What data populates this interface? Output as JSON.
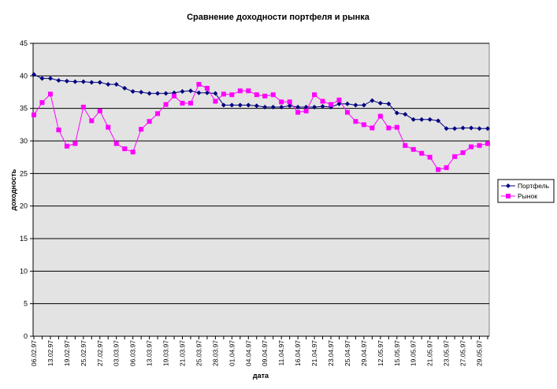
{
  "chart_data": {
    "type": "line",
    "title": "Сравнение доходности портфеля и рынка",
    "xlabel": "дата",
    "ylabel": "доходность",
    "ylim": [
      0,
      45
    ],
    "yticks": [
      0,
      5,
      10,
      15,
      20,
      25,
      30,
      35,
      40,
      45
    ],
    "grid": true,
    "legend_position": "right",
    "plot_background": "#e3e3e3",
    "categories": [
      "06.02.97",
      "",
      "13.02.97",
      "",
      "19.02.97",
      "",
      "25.02.97",
      "",
      "27.02.97",
      "",
      "03.03.97",
      "",
      "06.03.97",
      "",
      "13.03.97",
      "",
      "19.03.97",
      "",
      "21.03.97",
      "",
      "25.03.97",
      "",
      "28.03.97",
      "",
      "01.04.97",
      "",
      "04.04.97",
      "",
      "09.04.97",
      "",
      "11.04.97",
      "",
      "16.04.97",
      "",
      "21.04.97",
      "",
      "23.04.97",
      "",
      "25.04.97",
      "",
      "29.04.97",
      "",
      "12.05.97",
      "",
      "15.05.97",
      "",
      "19.05.97",
      "",
      "21.05.97",
      "",
      "23.05.97",
      "",
      "27.05.97",
      "",
      "29.05.97",
      ""
    ],
    "series": [
      {
        "name": "Портфель",
        "color": "#000080",
        "marker": "diamond",
        "values": [
          40.2,
          39.6,
          39.6,
          39.3,
          39.2,
          39.1,
          39.1,
          39.0,
          39.0,
          38.7,
          38.7,
          38.1,
          37.6,
          37.5,
          37.3,
          37.3,
          37.3,
          37.4,
          37.6,
          37.7,
          37.4,
          37.4,
          37.3,
          35.5,
          35.5,
          35.5,
          35.5,
          35.4,
          35.2,
          35.2,
          35.2,
          35.4,
          35.2,
          35.2,
          35.2,
          35.3,
          35.2,
          35.7,
          35.7,
          35.5,
          35.5,
          36.2,
          35.8,
          35.7,
          34.3,
          34.1,
          33.3,
          33.3,
          33.3,
          33.1,
          31.9,
          31.9,
          32.0,
          32.0,
          31.9,
          31.9
        ]
      },
      {
        "name": "Рынок",
        "color": "#ff00ff",
        "marker": "square",
        "values": [
          34.0,
          35.9,
          37.2,
          31.7,
          29.2,
          29.6,
          35.2,
          33.1,
          34.6,
          32.1,
          29.6,
          28.8,
          28.3,
          31.8,
          33.0,
          34.2,
          35.6,
          36.9,
          35.8,
          35.8,
          38.7,
          38.1,
          36.1,
          37.2,
          37.1,
          37.7,
          37.7,
          37.1,
          36.9,
          37.1,
          36.0,
          36.0,
          34.4,
          34.6,
          37.1,
          36.1,
          35.6,
          36.3,
          34.4,
          33.0,
          32.5,
          32.0,
          33.8,
          32.0,
          32.1,
          29.3,
          28.7,
          28.1,
          27.5,
          25.6,
          25.9,
          27.6,
          28.2,
          29.1,
          29.3,
          29.6
        ]
      }
    ]
  }
}
